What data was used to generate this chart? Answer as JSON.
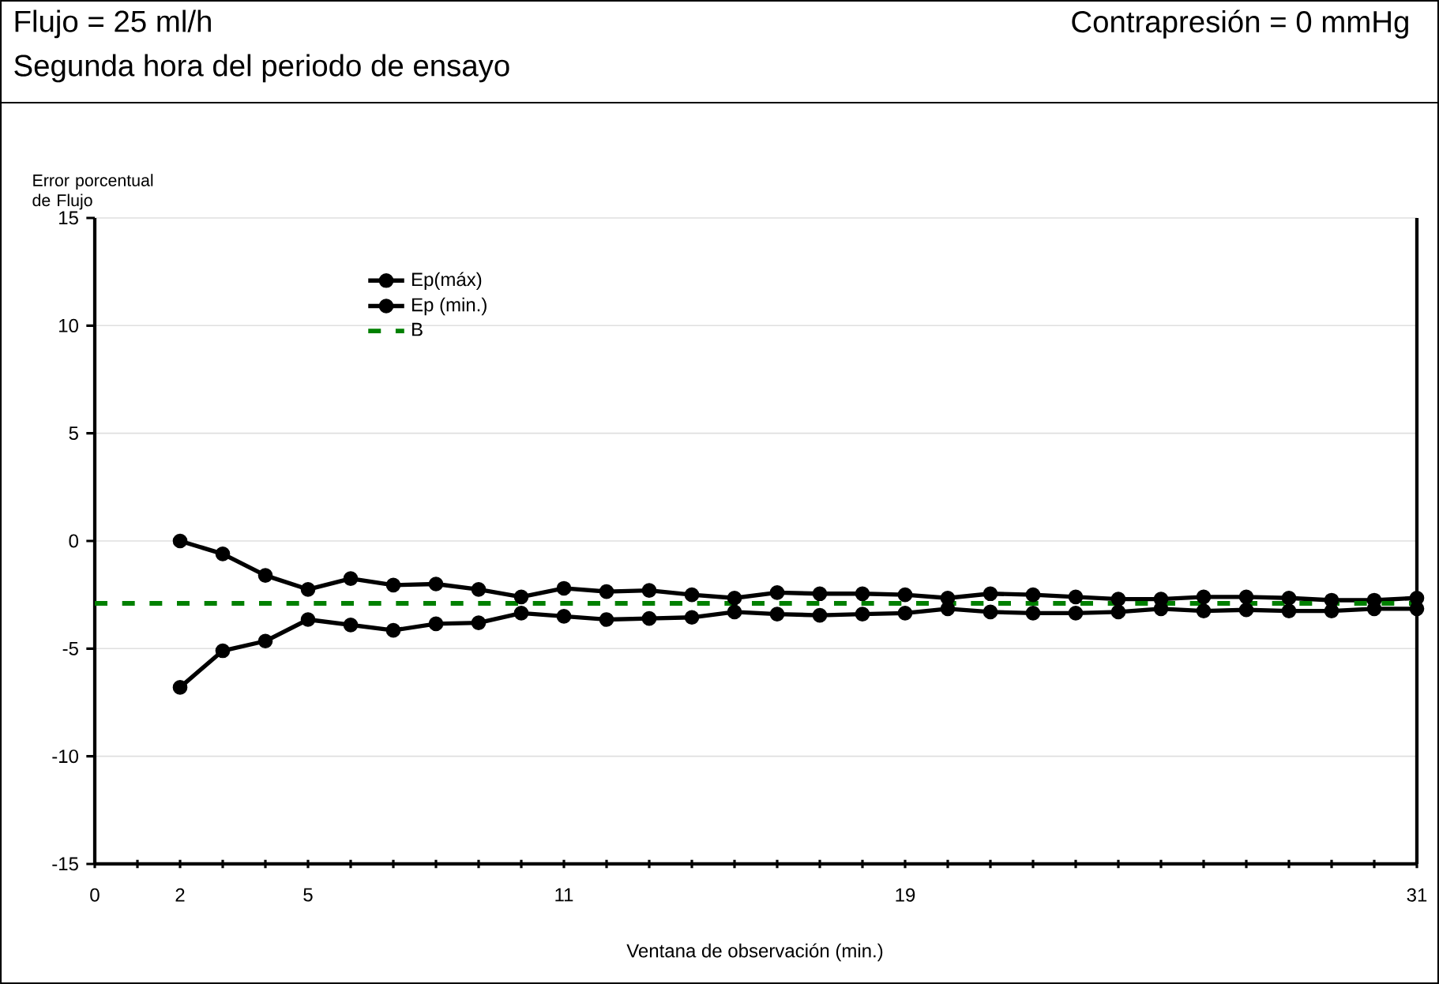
{
  "chart_data": {
    "type": "line",
    "title": "Flujo = 25 ml/h",
    "subtitle": "Segunda hora del periodo de ensayo",
    "annotations": [
      "Contrapresión = 0 mmHg"
    ],
    "xlabel": "Ventana de observación (min.)",
    "ylabel": "Error porcentual de Flujo",
    "x": [
      2,
      3,
      4,
      5,
      6,
      7,
      8,
      9,
      10,
      11,
      12,
      13,
      14,
      15,
      16,
      17,
      18,
      19,
      20,
      21,
      22,
      23,
      24,
      25,
      26,
      27,
      28,
      29,
      30,
      31
    ],
    "series": [
      {
        "name": "Ep(máx)",
        "color": "#000000",
        "values": [
          0,
          -0.6,
          -1.6,
          -2.25,
          -1.75,
          -2.05,
          -2.0,
          -2.25,
          -2.6,
          -2.2,
          -2.35,
          -2.3,
          -2.5,
          -2.65,
          -2.4,
          -2.45,
          -2.45,
          -2.5,
          -2.65,
          -2.45,
          -2.5,
          -2.6,
          -2.7,
          -2.7,
          -2.6,
          -2.6,
          -2.65,
          -2.75,
          -2.75,
          -2.65
        ]
      },
      {
        "name": "Ep (min.)",
        "color": "#000000",
        "values": [
          -6.8,
          -5.1,
          -4.65,
          -3.65,
          -3.9,
          -4.15,
          -3.85,
          -3.8,
          -3.35,
          -3.5,
          -3.65,
          -3.6,
          -3.55,
          -3.3,
          -3.4,
          -3.45,
          -3.4,
          -3.35,
          -3.15,
          -3.3,
          -3.35,
          -3.35,
          -3.3,
          -3.15,
          -3.25,
          -3.2,
          -3.25,
          -3.25,
          -3.15,
          -3.15
        ]
      }
    ],
    "ref_lines": [
      {
        "axis": "y",
        "value": -2.9,
        "label": "B",
        "color": "#008000",
        "line_style": "dashed"
      }
    ],
    "xlim": [
      0,
      31
    ],
    "ylim": [
      -15,
      15
    ],
    "xticks": [
      0,
      {
        "value": 1,
        "label": null
      },
      2,
      {
        "value": 3,
        "label": null
      },
      {
        "value": 4,
        "label": null
      },
      5,
      {
        "value": 6,
        "label": null
      },
      {
        "value": 7,
        "label": null
      },
      {
        "value": 8,
        "label": null
      },
      {
        "value": 9,
        "label": null
      },
      {
        "value": 10,
        "label": null
      },
      11,
      {
        "value": 12,
        "label": null
      },
      {
        "value": 13,
        "label": null
      },
      {
        "value": 14,
        "label": null
      },
      {
        "value": 15,
        "label": null
      },
      {
        "value": 16,
        "label": null
      },
      {
        "value": 17,
        "label": null
      },
      {
        "value": 18,
        "label": null
      },
      19,
      {
        "value": 20,
        "label": null
      },
      {
        "value": 21,
        "label": null
      },
      {
        "value": 22,
        "label": null
      },
      {
        "value": 23,
        "label": null
      },
      {
        "value": 24,
        "label": null
      },
      {
        "value": 25,
        "label": null
      },
      {
        "value": 26,
        "label": null
      },
      {
        "value": 27,
        "label": null
      },
      {
        "value": 28,
        "label": null
      },
      {
        "value": 29,
        "label": null
      },
      {
        "value": 30,
        "label": null
      },
      31
    ],
    "yticks": [
      -15,
      -10,
      -5,
      0,
      5,
      10,
      15
    ],
    "grid": "y",
    "legend": "top left",
    "marker": "circle",
    "line_style": "solid"
  }
}
